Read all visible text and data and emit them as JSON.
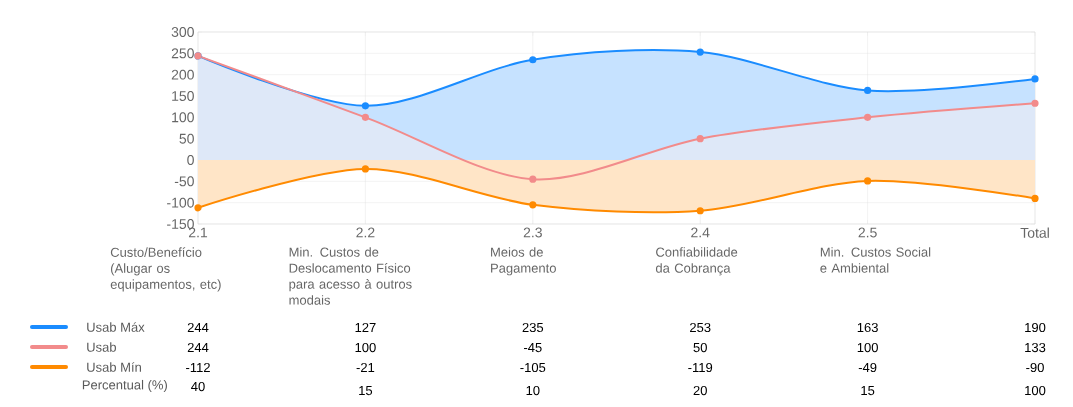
{
  "chart_data": {
    "type": "area",
    "categories": [
      "2.1",
      "2.2",
      "2.3",
      "2.4",
      "2.5",
      "Total"
    ],
    "series": [
      {
        "name": "Usab Máx",
        "color": "#1a8cff",
        "values": [
          244,
          127,
          235,
          253,
          163,
          190
        ]
      },
      {
        "name": "Usab",
        "color": "#f28b8b",
        "values": [
          244,
          100,
          -45,
          50,
          100,
          133
        ]
      },
      {
        "name": "Usab Mín",
        "color": "#ff8a00",
        "values": [
          -112,
          -21,
          -105,
          -119,
          -49,
          -90
        ]
      }
    ],
    "ylim": [
      -150,
      300
    ],
    "yticks": [
      -150,
      -100,
      -50,
      0,
      50,
      100,
      150,
      200,
      250,
      300
    ],
    "grid": true,
    "marker": "circle",
    "legend": "bottom",
    "data_labels": true,
    "annotations": [
      "Custo/Benefício (Alugar os equipamentos, etc)",
      "Min. Custos de Deslocamento Físico para acesso à outros modais",
      "Meios de Pagamento",
      "Confiabilidade da Cobrança",
      "Min. Custos Social e Ambiental",
      "Percentual (%)",
      "40",
      "15",
      "10",
      "20",
      "15",
      "100"
    ]
  }
}
